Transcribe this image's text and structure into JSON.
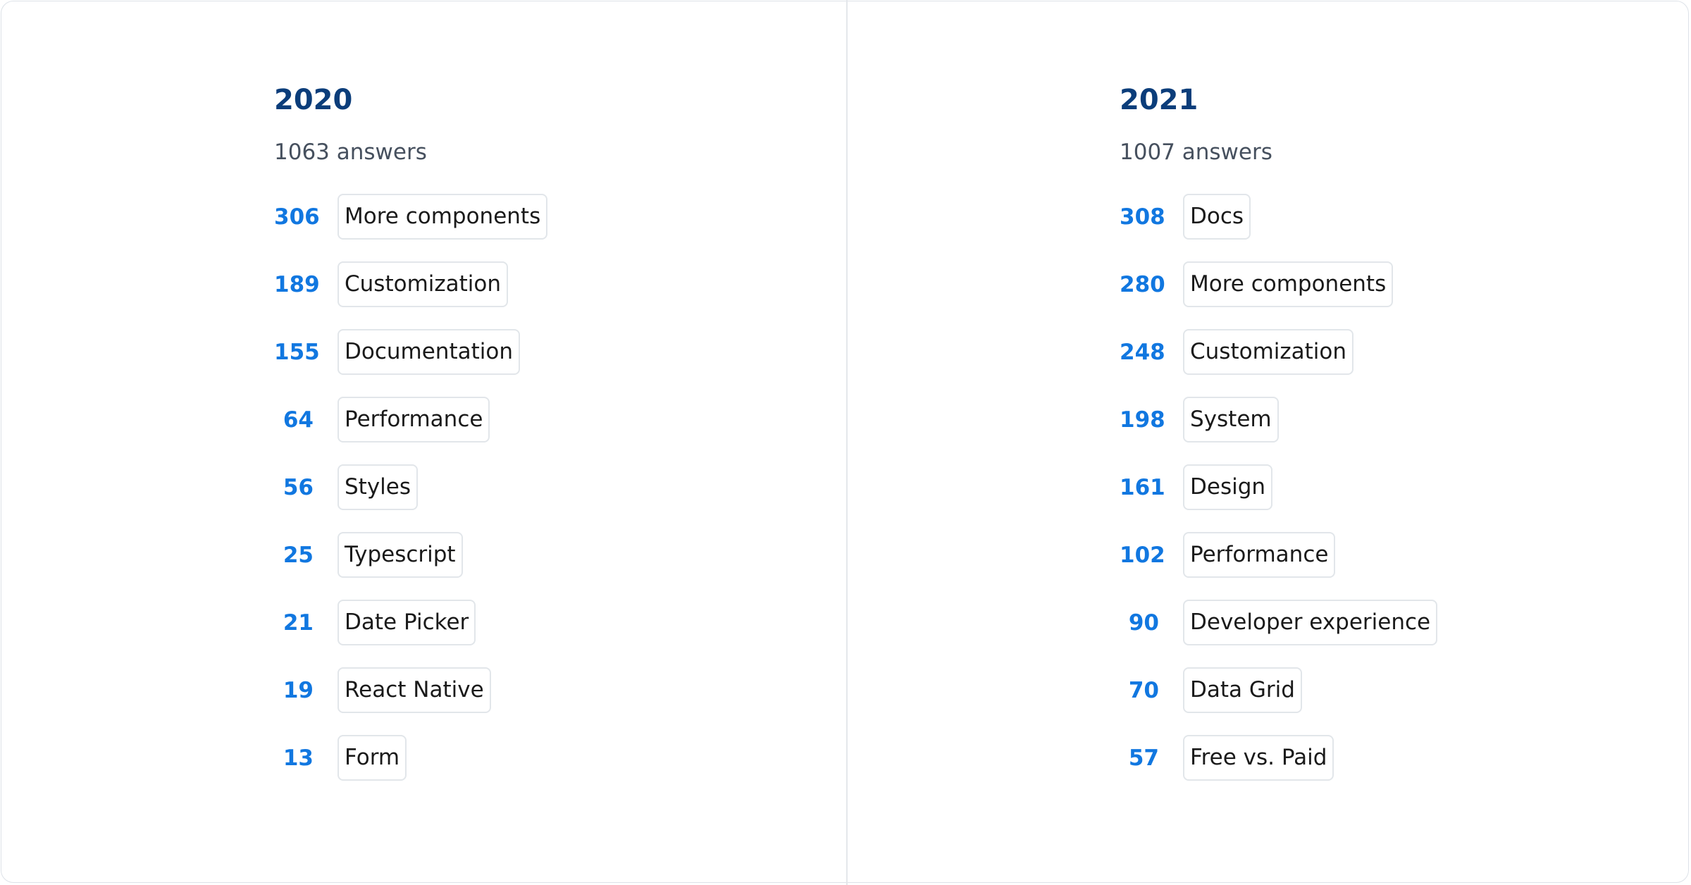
{
  "columns": [
    {
      "year": "2020",
      "answers": "1063 answers",
      "items": [
        {
          "count": "306",
          "label": "More components"
        },
        {
          "count": "189",
          "label": "Customization"
        },
        {
          "count": "155",
          "label": "Documentation"
        },
        {
          "count": "64",
          "label": "Performance"
        },
        {
          "count": "56",
          "label": "Styles"
        },
        {
          "count": "25",
          "label": "Typescript"
        },
        {
          "count": "21",
          "label": "Date Picker"
        },
        {
          "count": "19",
          "label": "React Native"
        },
        {
          "count": "13",
          "label": "Form"
        }
      ]
    },
    {
      "year": "2021",
      "answers": "1007 answers",
      "items": [
        {
          "count": "308",
          "label": "Docs"
        },
        {
          "count": "280",
          "label": "More components"
        },
        {
          "count": "248",
          "label": "Customization"
        },
        {
          "count": "198",
          "label": "System"
        },
        {
          "count": "161",
          "label": "Design"
        },
        {
          "count": "102",
          "label": "Performance"
        },
        {
          "count": "90",
          "label": "Developer experience"
        },
        {
          "count": "70",
          "label": "Data Grid"
        },
        {
          "count": "57",
          "label": "Free vs. Paid"
        }
      ]
    }
  ],
  "colors": {
    "title": "#0b3d7a",
    "count": "#1177e0",
    "subtitle": "#46505e",
    "border": "#e2e6ea"
  }
}
